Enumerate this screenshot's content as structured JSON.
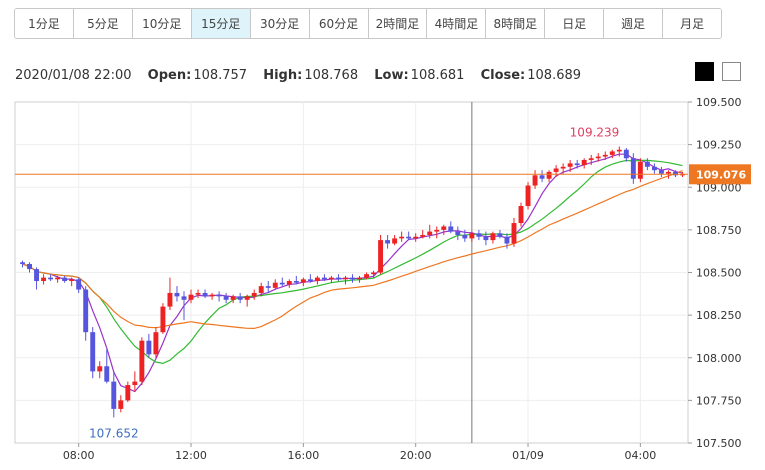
{
  "timeframes": [
    "1分足",
    "5分足",
    "10分足",
    "15分足",
    "30分足",
    "60分足",
    "2時間足",
    "4時間足",
    "8時間足",
    "日足",
    "週足",
    "月足"
  ],
  "active_timeframe": 3,
  "ohlc": {
    "datetime": "2020/01/08 22:00",
    "open_label": "Open:",
    "open": "108.757",
    "high_label": "High:",
    "high": "108.768",
    "low_label": "Low:",
    "low": "108.681",
    "close_label": "Close:",
    "close": "108.689"
  },
  "theme_buttons": [
    "dark-theme",
    "light-theme"
  ],
  "colors": {
    "up": "#ee2222",
    "down": "#5555dd",
    "ma_short": "#9933cc",
    "ma_mid": "#33bb33",
    "ma_long": "#ee7722",
    "price_line": "#ee7722",
    "high_label": "#e04060",
    "low_label": "#4070c0",
    "price_badge": "#ee7722"
  },
  "chart_data": {
    "type": "candlestick",
    "ylim": [
      107.5,
      109.5
    ],
    "yticks": [
      "109.500",
      "109.250",
      "109.000",
      "108.750",
      "108.500",
      "108.250",
      "108.000",
      "107.750",
      "107.500"
    ],
    "xticks": [
      "08:00",
      "12:00",
      "16:00",
      "20:00",
      "01/09",
      "04:00"
    ],
    "current_price": "109.076",
    "high_annotation": "109.239",
    "low_annotation": "107.652",
    "candles": [
      [
        108.56,
        108.57,
        108.53,
        108.55
      ],
      [
        108.55,
        108.56,
        108.5,
        108.52
      ],
      [
        108.52,
        108.53,
        108.4,
        108.45
      ],
      [
        108.45,
        108.49,
        108.43,
        108.47
      ],
      [
        108.47,
        108.49,
        108.45,
        108.46
      ],
      [
        108.46,
        108.48,
        108.44,
        108.47
      ],
      [
        108.47,
        108.48,
        108.44,
        108.45
      ],
      [
        108.45,
        108.47,
        108.42,
        108.46
      ],
      [
        108.46,
        108.47,
        108.38,
        108.4
      ],
      [
        108.4,
        108.42,
        108.1,
        108.15
      ],
      [
        108.15,
        108.18,
        107.88,
        107.92
      ],
      [
        107.92,
        107.98,
        107.88,
        107.95
      ],
      [
        107.95,
        108.05,
        107.85,
        107.86
      ],
      [
        107.86,
        107.92,
        107.65,
        107.7
      ],
      [
        107.7,
        107.78,
        107.68,
        107.75
      ],
      [
        107.75,
        107.86,
        107.74,
        107.84
      ],
      [
        107.84,
        107.92,
        107.8,
        107.86
      ],
      [
        107.86,
        108.12,
        107.84,
        108.1
      ],
      [
        108.1,
        108.14,
        108.0,
        108.02
      ],
      [
        108.02,
        108.18,
        108.0,
        108.15
      ],
      [
        108.15,
        108.32,
        108.14,
        108.3
      ],
      [
        108.3,
        108.47,
        108.28,
        108.38
      ],
      [
        108.38,
        108.42,
        108.33,
        108.36
      ],
      [
        108.36,
        108.39,
        108.22,
        108.34
      ],
      [
        108.34,
        108.4,
        108.32,
        108.37
      ],
      [
        108.37,
        108.4,
        108.35,
        108.38
      ],
      [
        108.38,
        108.4,
        108.35,
        108.36
      ],
      [
        108.36,
        108.38,
        108.34,
        108.37
      ],
      [
        108.37,
        108.39,
        108.33,
        108.36
      ],
      [
        108.36,
        108.38,
        108.32,
        108.34
      ],
      [
        108.34,
        108.37,
        108.32,
        108.36
      ],
      [
        108.36,
        108.38,
        108.32,
        108.34
      ],
      [
        108.34,
        108.37,
        108.3,
        108.36
      ],
      [
        108.36,
        108.4,
        108.34,
        108.38
      ],
      [
        108.38,
        108.44,
        108.36,
        108.42
      ],
      [
        108.42,
        108.45,
        108.38,
        108.41
      ],
      [
        108.41,
        108.46,
        108.4,
        108.44
      ],
      [
        108.44,
        108.47,
        108.42,
        108.43
      ],
      [
        108.43,
        108.46,
        108.41,
        108.45
      ],
      [
        108.45,
        108.48,
        108.43,
        108.44
      ],
      [
        108.44,
        108.47,
        108.42,
        108.46
      ],
      [
        108.46,
        108.49,
        108.44,
        108.45
      ],
      [
        108.45,
        108.48,
        108.43,
        108.47
      ],
      [
        108.47,
        108.49,
        108.45,
        108.46
      ],
      [
        108.46,
        108.48,
        108.44,
        108.47
      ],
      [
        108.47,
        108.49,
        108.45,
        108.46
      ],
      [
        108.46,
        108.48,
        108.43,
        108.47
      ],
      [
        108.47,
        108.49,
        108.44,
        108.46
      ],
      [
        108.46,
        108.48,
        108.44,
        108.47
      ],
      [
        108.47,
        108.5,
        108.46,
        108.49
      ],
      [
        108.49,
        108.51,
        108.47,
        108.5
      ],
      [
        108.5,
        108.72,
        108.49,
        108.69
      ],
      [
        108.69,
        108.72,
        108.64,
        108.67
      ],
      [
        108.67,
        108.72,
        108.66,
        108.7
      ],
      [
        108.7,
        108.74,
        108.68,
        108.71
      ],
      [
        108.71,
        108.74,
        108.69,
        108.7
      ],
      [
        108.7,
        108.73,
        108.68,
        108.71
      ],
      [
        108.71,
        108.75,
        108.7,
        108.72
      ],
      [
        108.72,
        108.78,
        108.7,
        108.74
      ],
      [
        108.74,
        108.77,
        108.7,
        108.75
      ],
      [
        108.75,
        108.78,
        108.72,
        108.77
      ],
      [
        108.77,
        108.8,
        108.73,
        108.74
      ],
      [
        108.74,
        108.77,
        108.69,
        108.72
      ],
      [
        108.72,
        108.75,
        108.68,
        108.7
      ],
      [
        108.7,
        108.74,
        108.68,
        108.73
      ],
      [
        108.73,
        108.75,
        108.69,
        108.71
      ],
      [
        108.71,
        108.74,
        108.66,
        108.69
      ],
      [
        108.69,
        108.74,
        108.67,
        108.73
      ],
      [
        108.73,
        108.75,
        108.7,
        108.71
      ],
      [
        108.71,
        108.73,
        108.64,
        108.67
      ],
      [
        108.67,
        108.82,
        108.65,
        108.79
      ],
      [
        108.79,
        108.91,
        108.77,
        108.89
      ],
      [
        108.89,
        109.03,
        108.87,
        109.01
      ],
      [
        109.01,
        109.1,
        108.99,
        109.07
      ],
      [
        109.07,
        109.1,
        109.03,
        109.05
      ],
      [
        109.05,
        109.1,
        109.03,
        109.09
      ],
      [
        109.09,
        109.13,
        109.06,
        109.11
      ],
      [
        109.11,
        109.14,
        109.08,
        109.12
      ],
      [
        109.12,
        109.16,
        109.09,
        109.14
      ],
      [
        109.14,
        109.16,
        109.11,
        109.13
      ],
      [
        109.13,
        109.17,
        109.11,
        109.16
      ],
      [
        109.16,
        109.19,
        109.13,
        109.17
      ],
      [
        109.17,
        109.2,
        109.15,
        109.18
      ],
      [
        109.18,
        109.21,
        109.16,
        109.19
      ],
      [
        109.19,
        109.22,
        109.17,
        109.21
      ],
      [
        109.21,
        109.239,
        109.18,
        109.22
      ],
      [
        109.22,
        109.23,
        109.15,
        109.17
      ],
      [
        109.17,
        109.2,
        109.02,
        109.05
      ],
      [
        109.05,
        109.17,
        109.03,
        109.15
      ],
      [
        109.15,
        109.17,
        109.1,
        109.12
      ],
      [
        109.12,
        109.14,
        109.08,
        109.1
      ],
      [
        109.1,
        109.12,
        109.06,
        109.08
      ],
      [
        109.08,
        109.1,
        109.05,
        109.09
      ],
      [
        109.09,
        109.1,
        109.06,
        109.07
      ],
      [
        109.07,
        109.09,
        109.06,
        109.076
      ]
    ]
  }
}
